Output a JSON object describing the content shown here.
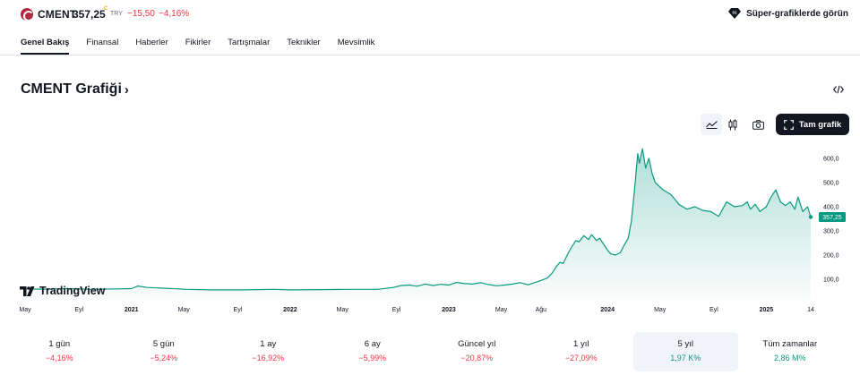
{
  "header": {
    "symbol": "CMENT",
    "price": "357,25",
    "realtime_mark": "C",
    "currency": "TRY",
    "change": "−15,50",
    "change_percent": "−4,16%",
    "super_charts_label": "Süper-grafiklerde görün",
    "logo_icon": "cment-logo-icon",
    "negative_color": "#f23645",
    "positive_color": "#089981"
  },
  "tabs": [
    {
      "label": "Genel Bakış",
      "active": true
    },
    {
      "label": "Finansal"
    },
    {
      "label": "Haberler"
    },
    {
      "label": "Fikirler"
    },
    {
      "label": "Tartışmalar"
    },
    {
      "label": "Teknikler"
    },
    {
      "label": "Mevsimlik"
    }
  ],
  "chart_section": {
    "title": "CMENT Grafiği",
    "chevron": "›",
    "full_chart_label": "Tam grafik",
    "watermark": "TradingView",
    "icons": [
      "embed-code-icon",
      "area-chart-icon",
      "candles-icon",
      "camera-icon",
      "fullscreen-icon"
    ]
  },
  "chart_data": {
    "type": "area",
    "title": "",
    "xlabel": "",
    "ylabel": "",
    "ylim": [
      50,
      650
    ],
    "y_ticks": [
      "600,0",
      "500,0",
      "400,0",
      "300,0",
      "200,0",
      "100,0"
    ],
    "y_tick_values": [
      600,
      500,
      400,
      300,
      200,
      100
    ],
    "x_tick_labels": [
      {
        "label": "May",
        "t": 2020.33,
        "year": false
      },
      {
        "label": "Eyl",
        "t": 2020.67,
        "year": false
      },
      {
        "label": "2021",
        "t": 2021.0,
        "year": true
      },
      {
        "label": "May",
        "t": 2021.33,
        "year": false
      },
      {
        "label": "Eyl",
        "t": 2021.67,
        "year": false
      },
      {
        "label": "2022",
        "t": 2022.0,
        "year": true
      },
      {
        "label": "May",
        "t": 2022.33,
        "year": false
      },
      {
        "label": "Eyl",
        "t": 2022.67,
        "year": false
      },
      {
        "label": "2023",
        "t": 2023.0,
        "year": true
      },
      {
        "label": "May",
        "t": 2023.33,
        "year": false
      },
      {
        "label": "Ağu",
        "t": 2023.58,
        "year": false
      },
      {
        "label": "2024",
        "t": 2024.0,
        "year": true
      },
      {
        "label": "May",
        "t": 2024.33,
        "year": false
      },
      {
        "label": "Eyl",
        "t": 2024.67,
        "year": false
      },
      {
        "label": "2025",
        "t": 2025.0,
        "year": true
      },
      {
        "label": "14",
        "t": 2025.28,
        "year": false
      }
    ],
    "last_value_label": "357,25",
    "line_color": "#089981",
    "series": [
      {
        "x": [
          2020.33,
          2020.45,
          2020.6,
          2020.75,
          2020.9,
          2021.0,
          2021.04,
          2021.1,
          2021.2,
          2021.35,
          2021.5,
          2021.7,
          2021.9,
          2022.0,
          2022.2,
          2022.4,
          2022.55,
          2022.6,
          2022.65,
          2022.7,
          2022.75,
          2022.8,
          2022.85,
          2022.9,
          2022.95,
          2023.0,
          2023.05,
          2023.1,
          2023.15,
          2023.2,
          2023.25,
          2023.3,
          2023.35,
          2023.4,
          2023.45,
          2023.5,
          2023.55,
          2023.58,
          2023.62,
          2023.65,
          2023.68,
          2023.7,
          2023.72,
          2023.75,
          2023.77,
          2023.8,
          2023.82,
          2023.85,
          2023.88,
          2023.9,
          2023.93,
          2023.95,
          2023.97,
          2024.0,
          2024.02,
          2024.05,
          2024.08,
          2024.1,
          2024.13,
          2024.15,
          2024.17,
          2024.19,
          2024.2,
          2024.22,
          2024.24,
          2024.26,
          2024.28,
          2024.3,
          2024.35,
          2024.4,
          2024.45,
          2024.5,
          2024.55,
          2024.6,
          2024.65,
          2024.7,
          2024.75,
          2024.8,
          2024.85,
          2024.88,
          2024.9,
          2024.93,
          2024.96,
          2025.0,
          2025.03,
          2025.06,
          2025.09,
          2025.12,
          2025.15,
          2025.18,
          2025.2,
          2025.23,
          2025.26,
          2025.28
        ],
        "y": [
          60,
          59,
          62,
          58,
          60,
          61,
          72,
          66,
          63,
          58,
          56,
          56,
          58,
          56,
          57,
          58,
          58,
          62,
          66,
          74,
          76,
          71,
          80,
          74,
          79,
          76,
          87,
          82,
          80,
          86,
          78,
          73,
          76,
          80,
          86,
          77,
          88,
          95,
          105,
          125,
          155,
          170,
          165,
          205,
          230,
          260,
          255,
          280,
          265,
          285,
          260,
          270,
          250,
          220,
          205,
          200,
          210,
          235,
          270,
          340,
          470,
          620,
          580,
          640,
          560,
          600,
          540,
          500,
          470,
          450,
          410,
          390,
          400,
          385,
          380,
          360,
          420,
          400,
          405,
          420,
          390,
          410,
          380,
          400,
          440,
          470,
          420,
          405,
          420,
          390,
          440,
          380,
          400,
          357.25
        ]
      }
    ]
  },
  "periods": [
    {
      "label": "1 gün",
      "value": "−4,16%",
      "dir": "neg"
    },
    {
      "label": "5 gün",
      "value": "−5,24%",
      "dir": "neg"
    },
    {
      "label": "1 ay",
      "value": "−16,92%",
      "dir": "neg"
    },
    {
      "label": "6 ay",
      "value": "−5,99%",
      "dir": "neg"
    },
    {
      "label": "Güncel yıl",
      "value": "−20,87%",
      "dir": "neg"
    },
    {
      "label": "1 yıl",
      "value": "−27,09%",
      "dir": "neg"
    },
    {
      "label": "5 yıl",
      "value": "1,97 K%",
      "dir": "pos",
      "selected": true
    },
    {
      "label": "Tüm zamanlar",
      "value": "2,86 M%",
      "dir": "pos"
    }
  ]
}
